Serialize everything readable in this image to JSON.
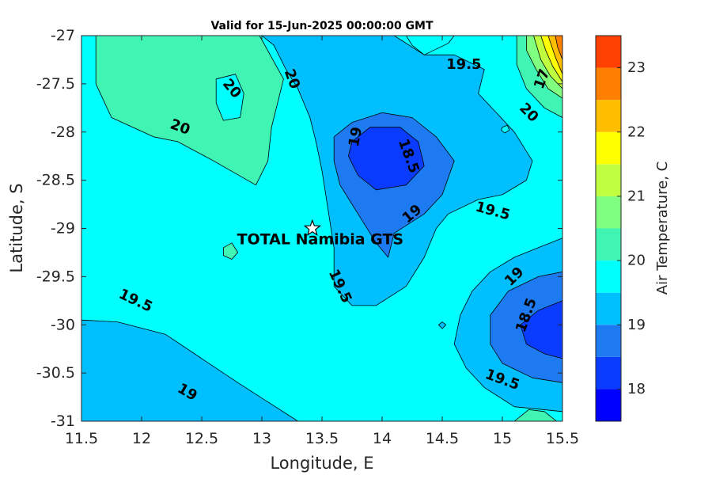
{
  "chart_data": {
    "type": "contour",
    "title": "Valid for 15-Jun-2025 00:00:00 GMT",
    "xlabel": "Longitude, E",
    "ylabel": "Latitude, S",
    "xlim": [
      11.5,
      15.5
    ],
    "ylim": [
      -31,
      -27
    ],
    "x_ticks": [
      "11.5",
      "12",
      "12.5",
      "13",
      "13.5",
      "14",
      "14.5",
      "15",
      "15.5"
    ],
    "y_ticks": [
      "-27",
      "-27.5",
      "-28",
      "-28.5",
      "-29",
      "-29.5",
      "-30",
      "-30.5",
      "-31"
    ],
    "grid": false,
    "colorbar": {
      "label": "Air Temperature, C",
      "range": [
        17.5,
        23.5
      ],
      "ticks": [
        "18",
        "19",
        "20",
        "21",
        "22",
        "23"
      ],
      "levels": [
        {
          "min": 17.5,
          "max": 18.0,
          "color": "#0000ff"
        },
        {
          "min": 18.0,
          "max": 18.5,
          "color": "#0a3cff"
        },
        {
          "min": 18.5,
          "max": 19.0,
          "color": "#1e7af0"
        },
        {
          "min": 19.0,
          "max": 19.5,
          "color": "#00bfff"
        },
        {
          "min": 19.5,
          "max": 20.0,
          "color": "#00ffff"
        },
        {
          "min": 20.0,
          "max": 20.5,
          "color": "#40f5b4"
        },
        {
          "min": 20.5,
          "max": 21.0,
          "color": "#80ff80"
        },
        {
          "min": 21.0,
          "max": 21.5,
          "color": "#c0ff40"
        },
        {
          "min": 21.5,
          "max": 22.0,
          "color": "#ffff00"
        },
        {
          "min": 22.0,
          "max": 22.5,
          "color": "#ffbf00"
        },
        {
          "min": 22.5,
          "max": 23.0,
          "color": "#ff8000"
        },
        {
          "min": 23.0,
          "max": 23.5,
          "color": "#ff4000"
        }
      ]
    },
    "regions": [
      {
        "name": "northwest-20-region",
        "level": 20.0,
        "points": [
          [
            11.62,
            -27.0
          ],
          [
            12.98,
            -27.0
          ],
          [
            13.18,
            -27.45
          ],
          [
            13.08,
            -27.95
          ],
          [
            13.05,
            -28.3
          ],
          [
            12.95,
            -28.55
          ],
          [
            12.6,
            -28.3
          ],
          [
            12.3,
            -28.1
          ],
          [
            12.1,
            -28.05
          ],
          [
            11.75,
            -27.85
          ],
          [
            11.62,
            -27.5
          ]
        ]
      },
      {
        "name": "northwest-inner-19-5-hole",
        "level": 19.5,
        "points": [
          [
            12.62,
            -27.45
          ],
          [
            12.78,
            -27.4
          ],
          [
            12.85,
            -27.6
          ],
          [
            12.82,
            -27.85
          ],
          [
            12.68,
            -27.88
          ],
          [
            12.62,
            -27.7
          ]
        ]
      },
      {
        "name": "central-19-region",
        "level": 19.0,
        "points": [
          [
            13.0,
            -27.0
          ],
          [
            14.1,
            -27.0
          ],
          [
            14.35,
            -27.2
          ],
          [
            14.6,
            -27.2
          ],
          [
            14.85,
            -27.35
          ],
          [
            14.8,
            -27.6
          ],
          [
            14.95,
            -27.8
          ],
          [
            15.1,
            -28.0
          ],
          [
            15.25,
            -28.3
          ],
          [
            15.2,
            -28.5
          ],
          [
            15.0,
            -28.65
          ],
          [
            14.8,
            -28.7
          ],
          [
            14.55,
            -28.85
          ],
          [
            14.45,
            -29.0
          ],
          [
            14.35,
            -29.3
          ],
          [
            14.2,
            -29.6
          ],
          [
            13.95,
            -29.8
          ],
          [
            13.75,
            -29.8
          ],
          [
            13.6,
            -29.6
          ],
          [
            13.6,
            -29.2
          ],
          [
            13.55,
            -28.8
          ],
          [
            13.5,
            -28.4
          ],
          [
            13.45,
            -28.1
          ],
          [
            13.4,
            -27.85
          ],
          [
            13.3,
            -27.55
          ],
          [
            13.2,
            -27.35
          ],
          [
            13.1,
            -27.1
          ]
        ]
      },
      {
        "name": "north-19-5-bump",
        "level": 19.5,
        "points": [
          [
            14.2,
            -27.0
          ],
          [
            14.6,
            -27.0
          ],
          [
            14.55,
            -27.08
          ],
          [
            14.35,
            -27.2
          ],
          [
            14.25,
            -27.1
          ]
        ]
      },
      {
        "name": "central-18-5-region",
        "level": 18.5,
        "points": [
          [
            13.6,
            -28.05
          ],
          [
            13.75,
            -27.9
          ],
          [
            14.0,
            -27.8
          ],
          [
            14.25,
            -27.85
          ],
          [
            14.45,
            -28.05
          ],
          [
            14.6,
            -28.3
          ],
          [
            14.5,
            -28.65
          ],
          [
            14.35,
            -28.85
          ],
          [
            14.1,
            -29.05
          ],
          [
            14.05,
            -29.3
          ],
          [
            13.95,
            -29.15
          ],
          [
            13.8,
            -28.85
          ],
          [
            13.65,
            -28.55
          ],
          [
            13.6,
            -28.3
          ]
        ]
      },
      {
        "name": "central-18-region",
        "level": 18.0,
        "points": [
          [
            13.75,
            -28.1
          ],
          [
            13.9,
            -27.95
          ],
          [
            14.15,
            -27.95
          ],
          [
            14.3,
            -28.1
          ],
          [
            14.35,
            -28.35
          ],
          [
            14.2,
            -28.55
          ],
          [
            13.95,
            -28.6
          ],
          [
            13.8,
            -28.45
          ],
          [
            13.72,
            -28.25
          ]
        ]
      },
      {
        "name": "southwest-19-region",
        "level": 19.0,
        "points": [
          [
            11.5,
            -29.95
          ],
          [
            11.8,
            -29.97
          ],
          [
            12.2,
            -30.1
          ],
          [
            12.5,
            -30.35
          ],
          [
            12.8,
            -30.6
          ],
          [
            13.05,
            -30.8
          ],
          [
            13.3,
            -31.0
          ],
          [
            11.5,
            -31.0
          ]
        ]
      },
      {
        "name": "southeast-19-region",
        "level": 19.0,
        "points": [
          [
            15.5,
            -29.1
          ],
          [
            15.3,
            -29.2
          ],
          [
            15.1,
            -29.3
          ],
          [
            14.9,
            -29.45
          ],
          [
            14.75,
            -29.65
          ],
          [
            14.65,
            -29.9
          ],
          [
            14.6,
            -30.2
          ],
          [
            14.7,
            -30.45
          ],
          [
            14.85,
            -30.65
          ],
          [
            15.1,
            -30.85
          ],
          [
            15.5,
            -30.9
          ]
        ]
      },
      {
        "name": "southeast-18-5-region",
        "level": 18.5,
        "points": [
          [
            15.5,
            -29.45
          ],
          [
            15.3,
            -29.5
          ],
          [
            15.05,
            -29.65
          ],
          [
            14.9,
            -29.9
          ],
          [
            14.9,
            -30.2
          ],
          [
            15.0,
            -30.4
          ],
          [
            15.25,
            -30.55
          ],
          [
            15.5,
            -30.6
          ]
        ]
      },
      {
        "name": "southeast-18-region",
        "level": 18.0,
        "points": [
          [
            15.5,
            -29.75
          ],
          [
            15.3,
            -29.85
          ],
          [
            15.15,
            -30.0
          ],
          [
            15.2,
            -30.2
          ],
          [
            15.35,
            -30.3
          ],
          [
            15.5,
            -30.35
          ]
        ]
      },
      {
        "name": "southeast-corner-20-region",
        "level": 20.0,
        "points": [
          [
            15.1,
            -31.0
          ],
          [
            15.22,
            -30.88
          ],
          [
            15.35,
            -30.9
          ],
          [
            15.45,
            -31.0
          ]
        ]
      },
      {
        "name": "northeast-20-region",
        "level": 20.0,
        "points": [
          [
            15.12,
            -27.0
          ],
          [
            15.5,
            -27.0
          ],
          [
            15.5,
            -27.85
          ],
          [
            15.35,
            -27.75
          ],
          [
            15.2,
            -27.55
          ],
          [
            15.12,
            -27.3
          ]
        ]
      },
      {
        "name": "northeast-20-5-region",
        "level": 20.5,
        "points": [
          [
            15.2,
            -27.0
          ],
          [
            15.5,
            -27.0
          ],
          [
            15.5,
            -27.65
          ],
          [
            15.38,
            -27.55
          ],
          [
            15.28,
            -27.35
          ],
          [
            15.2,
            -27.15
          ]
        ]
      },
      {
        "name": "northeast-21-region",
        "level": 21.0,
        "points": [
          [
            15.26,
            -27.0
          ],
          [
            15.5,
            -27.0
          ],
          [
            15.5,
            -27.55
          ],
          [
            15.4,
            -27.42
          ],
          [
            15.32,
            -27.25
          ]
        ]
      },
      {
        "name": "northeast-21-5-region",
        "level": 21.5,
        "points": [
          [
            15.32,
            -27.0
          ],
          [
            15.5,
            -27.0
          ],
          [
            15.5,
            -27.48
          ],
          [
            15.42,
            -27.32
          ],
          [
            15.36,
            -27.15
          ]
        ]
      },
      {
        "name": "northeast-22-region",
        "level": 22.0,
        "points": [
          [
            15.38,
            -27.0
          ],
          [
            15.5,
            -27.0
          ],
          [
            15.5,
            -27.4
          ],
          [
            15.44,
            -27.22
          ]
        ]
      },
      {
        "name": "northeast-22-5-region",
        "level": 22.5,
        "points": [
          [
            15.44,
            -27.0
          ],
          [
            15.5,
            -27.0
          ],
          [
            15.5,
            -27.25
          ],
          [
            15.46,
            -27.12
          ]
        ]
      },
      {
        "name": "small-20-island",
        "level": 20.0,
        "points": [
          [
            12.68,
            -29.2
          ],
          [
            12.75,
            -29.15
          ],
          [
            12.8,
            -29.25
          ],
          [
            12.75,
            -29.32
          ],
          [
            12.68,
            -29.28
          ]
        ]
      },
      {
        "name": "tiny-19-5-island-east",
        "level": 19.5,
        "points": [
          [
            15.0,
            -27.95
          ],
          [
            15.04,
            -27.93
          ],
          [
            15.06,
            -27.98
          ],
          [
            15.02,
            -28.01
          ],
          [
            14.99,
            -27.98
          ]
        ]
      },
      {
        "name": "tiny-19-island-south",
        "level": 19.0,
        "points": [
          [
            14.47,
            -30.0
          ],
          [
            14.5,
            -29.97
          ],
          [
            14.53,
            -30.0
          ],
          [
            14.5,
            -30.04
          ]
        ]
      }
    ],
    "contour_labels": [
      {
        "text": "20",
        "lon": 12.75,
        "lat": -27.55,
        "angle": 50
      },
      {
        "text": "20",
        "lon": 13.25,
        "lat": -27.45,
        "angle": 70
      },
      {
        "text": "20",
        "lon": 12.32,
        "lat": -27.95,
        "angle": 20
      },
      {
        "text": "20",
        "lon": 15.22,
        "lat": -27.8,
        "angle": 45
      },
      {
        "text": "19.5",
        "lon": 14.68,
        "lat": -27.3,
        "angle": 0
      },
      {
        "text": "19",
        "lon": 13.78,
        "lat": -28.05,
        "angle": -80
      },
      {
        "text": "18.5",
        "lon": 14.22,
        "lat": -28.25,
        "angle": 70
      },
      {
        "text": "19",
        "lon": 14.25,
        "lat": -28.85,
        "angle": -40
      },
      {
        "text": "19.5",
        "lon": 14.92,
        "lat": -28.82,
        "angle": 15
      },
      {
        "text": "19.5",
        "lon": 13.65,
        "lat": -29.6,
        "angle": 65
      },
      {
        "text": "19.5",
        "lon": 11.95,
        "lat": -29.75,
        "angle": 25
      },
      {
        "text": "19",
        "lon": 15.1,
        "lat": -29.5,
        "angle": -45
      },
      {
        "text": "18.5",
        "lon": 15.2,
        "lat": -29.9,
        "angle": -70
      },
      {
        "text": "19.5",
        "lon": 15.0,
        "lat": -30.57,
        "angle": 20
      },
      {
        "text": "19",
        "lon": 12.38,
        "lat": -30.7,
        "angle": 30
      },
      {
        "text": "17",
        "lon": 15.33,
        "lat": -27.45,
        "angle": -70
      }
    ],
    "station": {
      "name": "TOTAL Namibia GTS",
      "lon": 13.42,
      "lat": -29.0
    }
  }
}
